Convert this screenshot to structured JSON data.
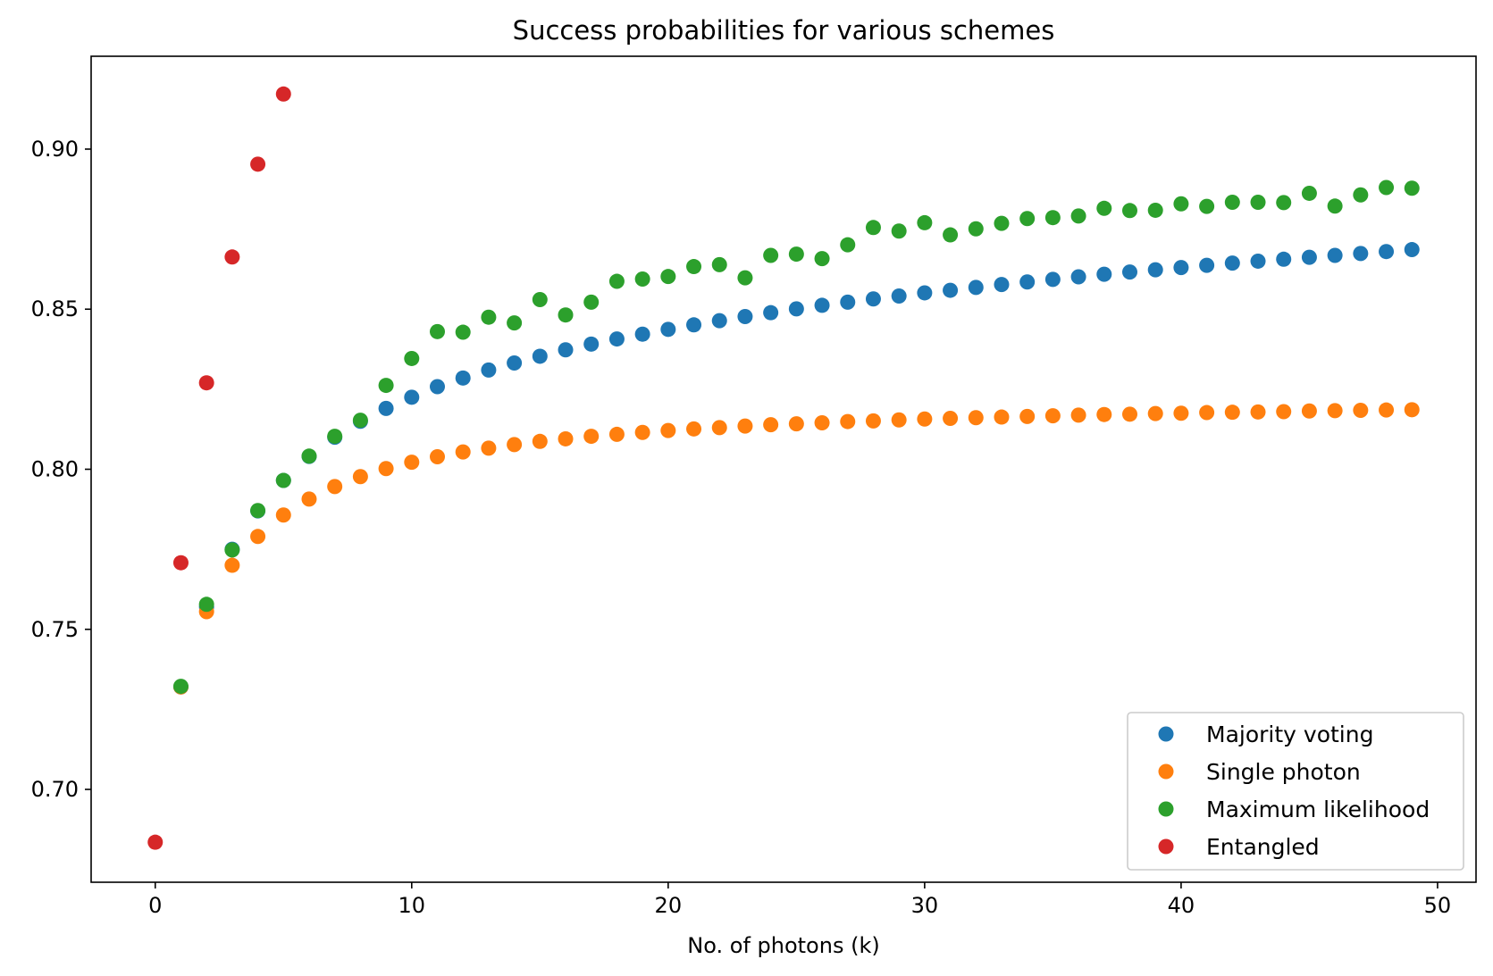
{
  "chart_data": {
    "type": "scatter",
    "title": "Success probabilities for various schemes",
    "xlabel": "No. of photons (k)",
    "ylabel": "",
    "xlim": [
      -2.5,
      51.5
    ],
    "ylim": [
      0.671,
      0.929
    ],
    "xticks": [
      0,
      10,
      20,
      30,
      40,
      50
    ],
    "xtick_labels": [
      "0",
      "10",
      "20",
      "30",
      "40",
      "50"
    ],
    "yticks": [
      0.7,
      0.75,
      0.8,
      0.85,
      0.9
    ],
    "ytick_labels": [
      "0.70",
      "0.75",
      "0.80",
      "0.85",
      "0.90"
    ],
    "grid": false,
    "legend_position": "lower right",
    "series": [
      {
        "name": "Majority voting",
        "color": "#1f77b4",
        "x": [
          1,
          2,
          3,
          4,
          5,
          6,
          7,
          8,
          9,
          10,
          11,
          12,
          13,
          14,
          15,
          16,
          17,
          18,
          19,
          20,
          21,
          22,
          23,
          24,
          25,
          26,
          27,
          28,
          29,
          30,
          31,
          32,
          33,
          34,
          35,
          36,
          37,
          38,
          39,
          40,
          41,
          42,
          43,
          44,
          45,
          46,
          47,
          48,
          49
        ],
        "y": [
          0.732,
          0.757,
          0.775,
          0.787,
          0.7965,
          0.804,
          0.81,
          0.815,
          0.819,
          0.8225,
          0.8258,
          0.8285,
          0.831,
          0.8332,
          0.8353,
          0.8373,
          0.8391,
          0.8407,
          0.8422,
          0.8437,
          0.8451,
          0.8464,
          0.8477,
          0.8489,
          0.8501,
          0.8512,
          0.8522,
          0.8532,
          0.8541,
          0.8551,
          0.8559,
          0.8568,
          0.8577,
          0.8585,
          0.8593,
          0.8601,
          0.8609,
          0.8616,
          0.8623,
          0.863,
          0.8637,
          0.8644,
          0.865,
          0.8656,
          0.8662,
          0.8668,
          0.8674,
          0.868,
          0.8686
        ]
      },
      {
        "name": "Single photon",
        "color": "#ff7f0e",
        "x": [
          1,
          2,
          3,
          4,
          5,
          6,
          7,
          8,
          9,
          10,
          11,
          12,
          13,
          14,
          15,
          16,
          17,
          18,
          19,
          20,
          21,
          22,
          23,
          24,
          25,
          26,
          27,
          28,
          29,
          30,
          31,
          32,
          33,
          34,
          35,
          36,
          37,
          38,
          39,
          40,
          41,
          42,
          43,
          44,
          45,
          46,
          47,
          48,
          49
        ],
        "y": [
          0.732,
          0.7555,
          0.77,
          0.779,
          0.7857,
          0.7907,
          0.7946,
          0.7977,
          0.8002,
          0.8022,
          0.8039,
          0.8054,
          0.8066,
          0.8077,
          0.8087,
          0.8095,
          0.8103,
          0.8109,
          0.8115,
          0.8121,
          0.8126,
          0.813,
          0.8135,
          0.8139,
          0.8142,
          0.8145,
          0.8149,
          0.8151,
          0.8154,
          0.8157,
          0.8159,
          0.8161,
          0.8163,
          0.8165,
          0.8167,
          0.8169,
          0.8171,
          0.8172,
          0.8174,
          0.8175,
          0.8177,
          0.8178,
          0.8179,
          0.818,
          0.8182,
          0.8183,
          0.8184,
          0.8185,
          0.8186
        ]
      },
      {
        "name": "Maximum likelihood",
        "color": "#2ca02c",
        "x": [
          1,
          2,
          3,
          4,
          5,
          6,
          7,
          8,
          9,
          10,
          11,
          12,
          13,
          14,
          15,
          16,
          17,
          18,
          19,
          20,
          21,
          22,
          23,
          24,
          25,
          26,
          27,
          28,
          29,
          30,
          31,
          32,
          33,
          34,
          35,
          36,
          37,
          38,
          39,
          40,
          41,
          42,
          43,
          44,
          45,
          46,
          47,
          48,
          49
        ],
        "y": [
          0.7322,
          0.7578,
          0.7748,
          0.7871,
          0.7965,
          0.8041,
          0.8103,
          0.8153,
          0.8262,
          0.8346,
          0.843,
          0.8428,
          0.8475,
          0.8457,
          0.853,
          0.8482,
          0.8522,
          0.8587,
          0.8594,
          0.8602,
          0.8633,
          0.8639,
          0.8598,
          0.8668,
          0.8672,
          0.8658,
          0.8701,
          0.8755,
          0.8744,
          0.877,
          0.8732,
          0.8751,
          0.8768,
          0.8783,
          0.8786,
          0.8791,
          0.8815,
          0.8808,
          0.8809,
          0.8829,
          0.8821,
          0.8834,
          0.8834,
          0.8833,
          0.8862,
          0.8822,
          0.8857,
          0.888,
          0.8878
        ]
      },
      {
        "name": "Entangled",
        "color": "#d62728",
        "x": [
          0,
          1,
          2,
          3,
          4,
          5
        ],
        "y": [
          0.6835,
          0.7708,
          0.827,
          0.8663,
          0.8953,
          0.9172
        ]
      }
    ]
  }
}
